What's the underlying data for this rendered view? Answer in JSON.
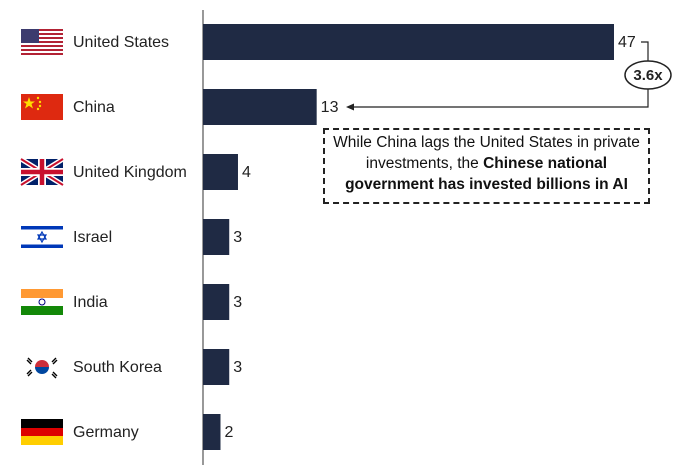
{
  "chart_data": {
    "type": "bar",
    "orientation": "horizontal",
    "categories": [
      "United States",
      "China",
      "United Kingdom",
      "Israel",
      "India",
      "South Korea",
      "Germany"
    ],
    "values": [
      47,
      13,
      4,
      3,
      3,
      3,
      2
    ],
    "color": "#1f2a44",
    "ratio_label": "3.6x",
    "annotation": [
      {
        "text": "While China lags the United States in private investments, the ",
        "bold": false
      },
      {
        "text": "Chinese national government has invested billions in AI",
        "bold": true
      }
    ]
  }
}
